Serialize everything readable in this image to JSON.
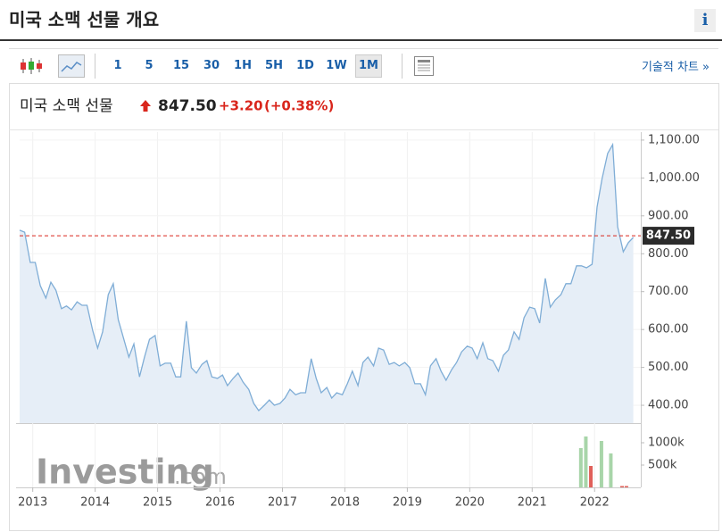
{
  "header": {
    "title": "미국 소맥 선물 개요",
    "info": "i"
  },
  "toolbar": {
    "intervals": [
      "1",
      "5",
      "15",
      "30",
      "1H",
      "5H",
      "1D",
      "1W",
      "1M"
    ],
    "active_index": 8,
    "technical_link": "기술적 차트 »"
  },
  "quote": {
    "name": "미국 소맥 선물",
    "price": "847.50",
    "change": "+3.20",
    "change_percent": "(+0.38%)"
  },
  "watermark": {
    "brand": "Investing",
    "domain": ".com"
  },
  "chart_data": [
    {
      "type": "area",
      "color": "#7fadd6",
      "fill": "#e6eef7",
      "grid": true,
      "x": [
        2012.79,
        2012.87,
        2012.96,
        2013.04,
        2013.12,
        2013.21,
        2013.29,
        2013.37,
        2013.46,
        2013.54,
        2013.62,
        2013.71,
        2013.79,
        2013.87,
        2013.96,
        2014.04,
        2014.12,
        2014.21,
        2014.29,
        2014.37,
        2014.46,
        2014.54,
        2014.62,
        2014.71,
        2014.79,
        2014.87,
        2014.96,
        2015.04,
        2015.12,
        2015.21,
        2015.29,
        2015.37,
        2015.46,
        2015.54,
        2015.62,
        2015.71,
        2015.79,
        2015.87,
        2015.96,
        2016.04,
        2016.12,
        2016.21,
        2016.29,
        2016.37,
        2016.46,
        2016.54,
        2016.62,
        2016.71,
        2016.79,
        2016.87,
        2016.96,
        2017.04,
        2017.12,
        2017.21,
        2017.29,
        2017.37,
        2017.46,
        2017.54,
        2017.62,
        2017.71,
        2017.79,
        2017.87,
        2017.96,
        2018.04,
        2018.12,
        2018.21,
        2018.29,
        2018.37,
        2018.46,
        2018.54,
        2018.62,
        2018.71,
        2018.79,
        2018.87,
        2018.96,
        2019.04,
        2019.12,
        2019.21,
        2019.29,
        2019.37,
        2019.46,
        2019.54,
        2019.62,
        2019.71,
        2019.79,
        2019.87,
        2019.96,
        2020.04,
        2020.12,
        2020.21,
        2020.29,
        2020.37,
        2020.46,
        2020.54,
        2020.62,
        2020.71,
        2020.79,
        2020.87,
        2020.96,
        2021.04,
        2021.12,
        2021.21,
        2021.29,
        2021.37,
        2021.46,
        2021.54,
        2021.62,
        2021.71,
        2021.79,
        2021.87,
        2021.96,
        2022.04,
        2022.12,
        2022.21,
        2022.29,
        2022.37,
        2022.46,
        2022.54,
        2022.62
      ],
      "values": [
        862,
        857,
        777,
        777,
        716,
        683,
        725,
        704,
        655,
        662,
        652,
        673,
        664,
        664,
        598,
        551,
        594,
        692,
        721,
        626,
        574,
        527,
        562,
        475,
        527,
        574,
        584,
        504,
        511,
        511,
        475,
        475,
        622,
        499,
        485,
        508,
        518,
        475,
        471,
        480,
        452,
        471,
        485,
        461,
        442,
        405,
        386,
        400,
        414,
        400,
        405,
        419,
        442,
        428,
        433,
        433,
        523,
        471,
        433,
        447,
        419,
        433,
        428,
        457,
        490,
        452,
        513,
        527,
        504,
        551,
        546,
        508,
        513,
        504,
        513,
        499,
        457,
        457,
        428,
        504,
        523,
        490,
        466,
        494,
        513,
        541,
        556,
        551,
        523,
        565,
        523,
        518,
        490,
        532,
        546,
        594,
        574,
        631,
        659,
        655,
        617,
        735,
        659,
        678,
        692,
        721,
        721,
        768,
        768,
        763,
        772,
        923,
        998,
        1065,
        1088,
        871,
        805,
        829,
        843
      ],
      "last": {
        "value": 847.5,
        "label": "847.50"
      },
      "last_color": "#d9261c",
      "xlim": [
        2012.79,
        2022.74
      ],
      "xticks": [
        2013,
        2014,
        2015,
        2016,
        2017,
        2018,
        2019,
        2020,
        2021,
        2022
      ],
      "ylim": [
        353,
        1121
      ],
      "yticks": [
        {
          "value": 400,
          "label": "400.00"
        },
        {
          "value": 500,
          "label": "500.00"
        },
        {
          "value": 600,
          "label": "600.00"
        },
        {
          "value": 700,
          "label": "700.00"
        },
        {
          "value": 800,
          "label": "800.00"
        },
        {
          "value": 900,
          "label": "900.00"
        },
        {
          "value": 1000,
          "label": "1,000.00"
        },
        {
          "value": 1100,
          "label": "1,100.00"
        }
      ]
    },
    {
      "type": "bar",
      "x": [
        2021.78,
        2021.86,
        2021.94,
        2022.11,
        2022.26,
        2022.44,
        2022.51
      ],
      "values": [
        880000,
        1140000,
        480000,
        1040000,
        760000,
        30000,
        30000
      ],
      "colors": [
        "#a8d5a9",
        "#a8d5a9",
        "#e0605a",
        "#a8d5a9",
        "#a8d5a9",
        "#e0605a",
        "#e0605a"
      ],
      "xlim": [
        2012.79,
        2022.74
      ],
      "ylim": [
        0,
        1400000
      ],
      "yticks": [
        {
          "value": 500000,
          "label": "500k"
        },
        {
          "value": 1000000,
          "label": "1000k"
        }
      ]
    }
  ]
}
